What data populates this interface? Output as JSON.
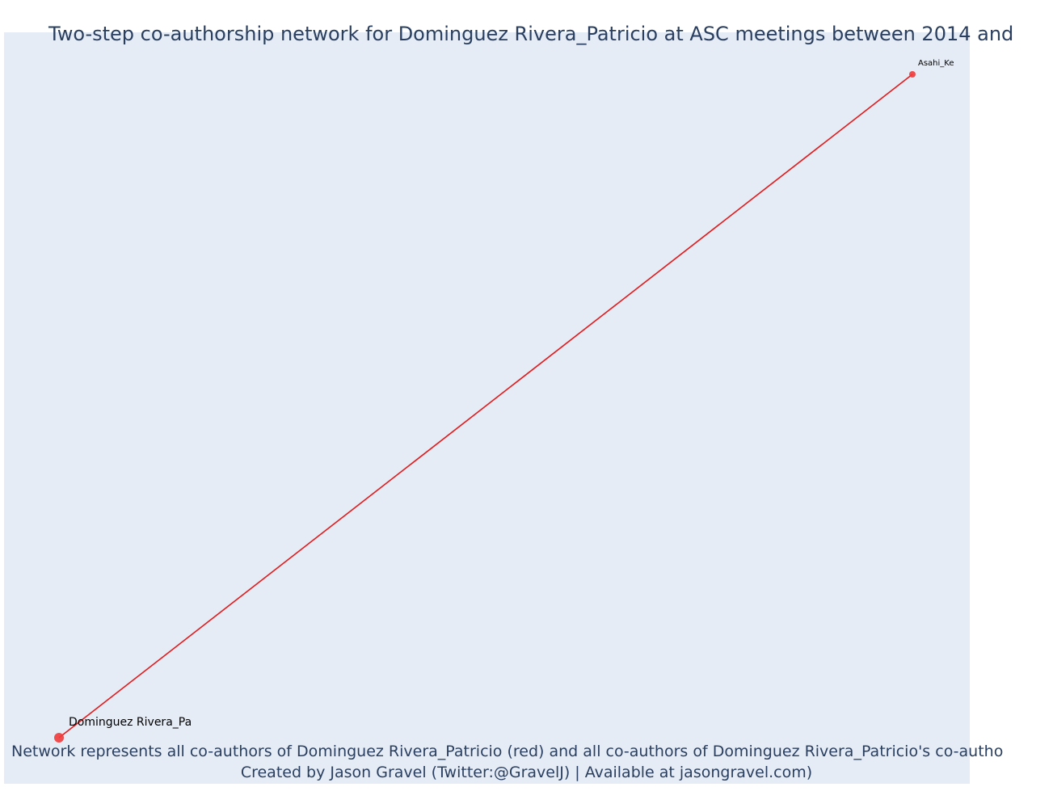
{
  "title": "Two-step co-authorship network for Dominguez Rivera_Patricio at ASC meetings between 2014 and",
  "caption": {
    "line1": "Network represents all co-authors of Dominguez Rivera_Patricio (red) and all co-authors of Dominguez Rivera_Patricio's co-autho",
    "line2": "Created by Jason Gravel (Twitter:@GravelJ) | Available at jasongravel.com)"
  },
  "colors": {
    "plot_background": "#e5ecf6",
    "edge": "#e31a1c",
    "node": "#ef3b3b",
    "text": "#2a3f5f"
  },
  "network": {
    "nodes": [
      {
        "id": "dominguez",
        "label": "Dominguez Rivera_Pa",
        "role": "focal",
        "color": "red"
      },
      {
        "id": "asahi",
        "label": "Asahi_Ke",
        "role": "co-author",
        "color": "red"
      }
    ],
    "edges": [
      {
        "source": "dominguez",
        "target": "asahi"
      }
    ]
  }
}
